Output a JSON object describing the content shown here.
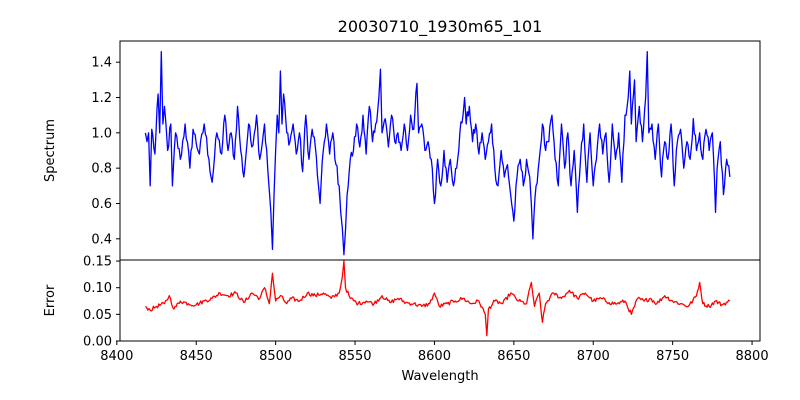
{
  "chart_data": {
    "type": "line",
    "title": "20030710_1930m65_101",
    "xlabel": "Wavelength",
    "x_ticks": [
      8400,
      8450,
      8500,
      8550,
      8600,
      8650,
      8700,
      8750,
      8800
    ],
    "xlim": [
      8402,
      8805
    ],
    "panels": [
      {
        "name": "spectrum",
        "ylabel": "Spectrum",
        "ylim": [
          0.28,
          1.52
        ],
        "y_ticks": [
          0.4,
          0.6,
          0.8,
          1.0,
          1.2,
          1.4
        ],
        "y_tick_labels": [
          "0.4",
          "0.6",
          "0.8",
          "1.0",
          "1.2",
          "1.4"
        ],
        "color": "#0000ff",
        "x_range": [
          8418,
          8786
        ],
        "anchors": [
          [
            8418,
            1.0
          ],
          [
            8419,
            0.95
          ],
          [
            8420,
            1.0
          ],
          [
            8421,
            0.7
          ],
          [
            8422,
            1.02
          ],
          [
            8424,
            0.88
          ],
          [
            8426,
            1.22
          ],
          [
            8427,
            1.0
          ],
          [
            8428,
            1.46
          ],
          [
            8429,
            1.05
          ],
          [
            8430,
            1.15
          ],
          [
            8432,
            0.9
          ],
          [
            8434,
            1.05
          ],
          [
            8435,
            0.7
          ],
          [
            8437,
            1.0
          ],
          [
            8440,
            0.85
          ],
          [
            8443,
            1.05
          ],
          [
            8446,
            0.8
          ],
          [
            8448,
            1.02
          ],
          [
            8452,
            0.88
          ],
          [
            8455,
            1.05
          ],
          [
            8458,
            0.85
          ],
          [
            8460,
            0.72
          ],
          [
            8463,
            1.0
          ],
          [
            8466,
            0.88
          ],
          [
            8468,
            1.1
          ],
          [
            8470,
            0.9
          ],
          [
            8472,
            1.0
          ],
          [
            8474,
            0.85
          ],
          [
            8476,
            1.15
          ],
          [
            8478,
            0.9
          ],
          [
            8480,
            0.75
          ],
          [
            8483,
            1.05
          ],
          [
            8485,
            0.92
          ],
          [
            8488,
            1.1
          ],
          [
            8490,
            0.85
          ],
          [
            8493,
            1.05
          ],
          [
            8495,
            0.8
          ],
          [
            8497,
            0.55
          ],
          [
            8498,
            0.34
          ],
          [
            8499,
            0.65
          ],
          [
            8500,
            0.9
          ],
          [
            8501,
            1.1
          ],
          [
            8502,
            1.0
          ],
          [
            8503,
            1.35
          ],
          [
            8504,
            1.05
          ],
          [
            8505,
            1.22
          ],
          [
            8507,
            1.0
          ],
          [
            8509,
            0.95
          ],
          [
            8511,
            1.05
          ],
          [
            8513,
            0.88
          ],
          [
            8515,
            1.0
          ],
          [
            8517,
            0.78
          ],
          [
            8519,
            1.1
          ],
          [
            8521,
            0.85
          ],
          [
            8523,
            1.02
          ],
          [
            8525,
            0.92
          ],
          [
            8527,
            0.7
          ],
          [
            8528,
            0.6
          ],
          [
            8530,
            0.9
          ],
          [
            8532,
            1.05
          ],
          [
            8534,
            0.88
          ],
          [
            8536,
            1.0
          ],
          [
            8538,
            0.82
          ],
          [
            8540,
            0.7
          ],
          [
            8541,
            0.55
          ],
          [
            8542,
            0.46
          ],
          [
            8543,
            0.31
          ],
          [
            8544,
            0.45
          ],
          [
            8545,
            0.65
          ],
          [
            8547,
            0.85
          ],
          [
            8549,
            0.9
          ],
          [
            8551,
            1.05
          ],
          [
            8553,
            0.92
          ],
          [
            8555,
            1.1
          ],
          [
            8557,
            0.88
          ],
          [
            8559,
            1.15
          ],
          [
            8561,
            0.95
          ],
          [
            8563,
            1.05
          ],
          [
            8565,
            1.2
          ],
          [
            8566,
            1.36
          ],
          [
            8567,
            1.0
          ],
          [
            8569,
            1.08
          ],
          [
            8571,
            0.92
          ],
          [
            8573,
            1.1
          ],
          [
            8575,
            0.95
          ],
          [
            8577,
            1.0
          ],
          [
            8579,
            0.9
          ],
          [
            8581,
            1.05
          ],
          [
            8583,
            0.9
          ],
          [
            8585,
            1.1
          ],
          [
            8587,
            1.02
          ],
          [
            8589,
            1.28
          ],
          [
            8590,
            1.0
          ],
          [
            8592,
            1.05
          ],
          [
            8594,
            0.9
          ],
          [
            8596,
            0.95
          ],
          [
            8598,
            0.85
          ],
          [
            8600,
            0.6
          ],
          [
            8602,
            0.85
          ],
          [
            8604,
            0.7
          ],
          [
            8606,
            0.9
          ],
          [
            8608,
            0.72
          ],
          [
            8610,
            0.85
          ],
          [
            8612,
            0.7
          ],
          [
            8614,
            0.8
          ],
          [
            8616,
            1.0
          ],
          [
            8618,
            1.1
          ],
          [
            8619,
            1.2
          ],
          [
            8620,
            1.05
          ],
          [
            8622,
            1.15
          ],
          [
            8624,
            0.95
          ],
          [
            8626,
            1.05
          ],
          [
            8628,
            0.88
          ],
          [
            8630,
            1.0
          ],
          [
            8632,
            0.85
          ],
          [
            8634,
            0.95
          ],
          [
            8636,
            1.05
          ],
          [
            8638,
            0.8
          ],
          [
            8640,
            0.7
          ],
          [
            8642,
            0.9
          ],
          [
            8644,
            0.75
          ],
          [
            8646,
            0.82
          ],
          [
            8648,
            0.65
          ],
          [
            8650,
            0.5
          ],
          [
            8652,
            0.75
          ],
          [
            8654,
            0.85
          ],
          [
            8656,
            0.7
          ],
          [
            8658,
            0.85
          ],
          [
            8660,
            0.75
          ],
          [
            8661,
            0.6
          ],
          [
            8662,
            0.4
          ],
          [
            8664,
            0.7
          ],
          [
            8666,
            0.85
          ],
          [
            8668,
            1.05
          ],
          [
            8670,
            0.9
          ],
          [
            8672,
            0.95
          ],
          [
            8674,
            1.1
          ],
          [
            8676,
            0.85
          ],
          [
            8678,
            0.7
          ],
          [
            8680,
            1.05
          ],
          [
            8682,
            0.8
          ],
          [
            8684,
            1.0
          ],
          [
            8686,
            0.7
          ],
          [
            8688,
            0.9
          ],
          [
            8690,
            0.55
          ],
          [
            8692,
            0.85
          ],
          [
            8694,
            1.05
          ],
          [
            8696,
            0.72
          ],
          [
            8698,
            1.0
          ],
          [
            8700,
            0.7
          ],
          [
            8702,
            0.85
          ],
          [
            8704,
            1.05
          ],
          [
            8706,
            0.88
          ],
          [
            8708,
            1.0
          ],
          [
            8710,
            0.72
          ],
          [
            8712,
            1.05
          ],
          [
            8714,
            0.85
          ],
          [
            8716,
            1.0
          ],
          [
            8718,
            0.72
          ],
          [
            8720,
            1.1
          ],
          [
            8722,
            1.2
          ],
          [
            8723,
            1.35
          ],
          [
            8724,
            1.05
          ],
          [
            8726,
            1.3
          ],
          [
            8727,
            0.95
          ],
          [
            8729,
            1.15
          ],
          [
            8731,
            0.95
          ],
          [
            8733,
            1.2
          ],
          [
            8734,
            1.46
          ],
          [
            8735,
            1.0
          ],
          [
            8737,
            1.05
          ],
          [
            8739,
            0.85
          ],
          [
            8741,
            1.05
          ],
          [
            8743,
            0.75
          ],
          [
            8745,
            0.95
          ],
          [
            8747,
            0.85
          ],
          [
            8749,
            1.05
          ],
          [
            8751,
            0.7
          ],
          [
            8753,
            0.95
          ],
          [
            8755,
            1.02
          ],
          [
            8757,
            0.8
          ],
          [
            8759,
            0.95
          ],
          [
            8761,
            0.85
          ],
          [
            8763,
            1.08
          ],
          [
            8765,
            0.9
          ],
          [
            8767,
            1.0
          ],
          [
            8769,
            0.85
          ],
          [
            8771,
            1.02
          ],
          [
            8773,
            0.9
          ],
          [
            8775,
            1.0
          ],
          [
            8777,
            0.55
          ],
          [
            8778,
            0.8
          ],
          [
            8780,
            0.95
          ],
          [
            8782,
            0.65
          ],
          [
            8784,
            0.85
          ],
          [
            8786,
            0.75
          ]
        ]
      },
      {
        "name": "error",
        "ylabel": "Error",
        "ylim": [
          0.0,
          0.152
        ],
        "y_ticks": [
          0.0,
          0.05,
          0.1,
          0.15
        ],
        "y_tick_labels": [
          "0.00",
          "0.05",
          "0.10",
          "0.15"
        ],
        "color": "#ff0000",
        "x_range": [
          8418,
          8786
        ],
        "anchors": [
          [
            8418,
            0.065
          ],
          [
            8421,
            0.058
          ],
          [
            8425,
            0.065
          ],
          [
            8430,
            0.07
          ],
          [
            8433,
            0.085
          ],
          [
            8436,
            0.06
          ],
          [
            8440,
            0.075
          ],
          [
            8445,
            0.07
          ],
          [
            8450,
            0.068
          ],
          [
            8455,
            0.075
          ],
          [
            8460,
            0.08
          ],
          [
            8465,
            0.09
          ],
          [
            8470,
            0.085
          ],
          [
            8475,
            0.09
          ],
          [
            8480,
            0.072
          ],
          [
            8485,
            0.09
          ],
          [
            8490,
            0.08
          ],
          [
            8493,
            0.1
          ],
          [
            8496,
            0.07
          ],
          [
            8498,
            0.127
          ],
          [
            8500,
            0.075
          ],
          [
            8503,
            0.085
          ],
          [
            8507,
            0.07
          ],
          [
            8510,
            0.08
          ],
          [
            8515,
            0.075
          ],
          [
            8520,
            0.09
          ],
          [
            8525,
            0.085
          ],
          [
            8530,
            0.09
          ],
          [
            8535,
            0.08
          ],
          [
            8540,
            0.09
          ],
          [
            8542,
            0.12
          ],
          [
            8543,
            0.15
          ],
          [
            8544,
            0.1
          ],
          [
            8547,
            0.08
          ],
          [
            8552,
            0.07
          ],
          [
            8557,
            0.075
          ],
          [
            8562,
            0.07
          ],
          [
            8567,
            0.085
          ],
          [
            8572,
            0.072
          ],
          [
            8577,
            0.08
          ],
          [
            8582,
            0.072
          ],
          [
            8587,
            0.07
          ],
          [
            8592,
            0.065
          ],
          [
            8597,
            0.07
          ],
          [
            8600,
            0.09
          ],
          [
            8603,
            0.065
          ],
          [
            8608,
            0.07
          ],
          [
            8613,
            0.075
          ],
          [
            8618,
            0.08
          ],
          [
            8623,
            0.07
          ],
          [
            8628,
            0.075
          ],
          [
            8632,
            0.05
          ],
          [
            8633,
            0.01
          ],
          [
            8634,
            0.06
          ],
          [
            8638,
            0.075
          ],
          [
            8643,
            0.07
          ],
          [
            8648,
            0.09
          ],
          [
            8653,
            0.075
          ],
          [
            8658,
            0.07
          ],
          [
            8661,
            0.11
          ],
          [
            8663,
            0.065
          ],
          [
            8666,
            0.09
          ],
          [
            8668,
            0.035
          ],
          [
            8670,
            0.07
          ],
          [
            8675,
            0.09
          ],
          [
            8680,
            0.08
          ],
          [
            8685,
            0.095
          ],
          [
            8690,
            0.08
          ],
          [
            8695,
            0.09
          ],
          [
            8700,
            0.075
          ],
          [
            8705,
            0.08
          ],
          [
            8710,
            0.072
          ],
          [
            8715,
            0.07
          ],
          [
            8720,
            0.075
          ],
          [
            8724,
            0.05
          ],
          [
            8728,
            0.08
          ],
          [
            8732,
            0.075
          ],
          [
            8736,
            0.08
          ],
          [
            8740,
            0.07
          ],
          [
            8745,
            0.085
          ],
          [
            8750,
            0.075
          ],
          [
            8755,
            0.07
          ],
          [
            8760,
            0.065
          ],
          [
            8765,
            0.085
          ],
          [
            8767,
            0.11
          ],
          [
            8769,
            0.07
          ],
          [
            8773,
            0.065
          ],
          [
            8777,
            0.075
          ],
          [
            8781,
            0.068
          ],
          [
            8786,
            0.075
          ]
        ]
      }
    ]
  }
}
